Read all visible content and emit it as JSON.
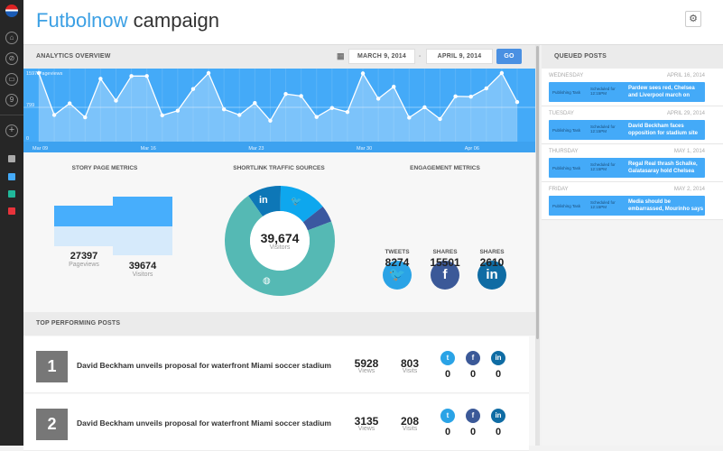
{
  "header": {
    "title_brand": "Futbolnow",
    "title_rest": "campaign"
  },
  "sidebar": {
    "icons": [
      "pepsi-logo",
      "home-icon",
      "compass-icon",
      "briefcase-icon",
      "badge-icon",
      "plus-icon"
    ],
    "badge": "9",
    "colors": [
      "#aaaaaa",
      "#44aaf8",
      "#20b89a",
      "#e8333b"
    ]
  },
  "analytics": {
    "title": "ANALYTICS OVERVIEW",
    "start_date": "MARCH 9, 2014",
    "separator": "-",
    "end_date": "APRIL 9, 2014",
    "go": "GO"
  },
  "chart_data": {
    "type": "area",
    "ylabel": "1597 Pageviews",
    "ylim": [
      0,
      1597
    ],
    "yticks": [
      "0",
      "799"
    ],
    "xticks": [
      "Mar 09",
      "Mar 16",
      "Mar 23",
      "Mar 30",
      "Apr 06"
    ],
    "xtick_index": [
      0,
      7,
      14,
      21,
      28
    ],
    "values": [
      1597,
      620,
      892,
      566,
      1465,
      954,
      1527,
      1527,
      612,
      721,
      1225,
      1597,
      752,
      620,
      899,
      488,
      1109,
      1062,
      574,
      783,
      690,
      1589,
      1000,
      1279,
      558,
      799,
      527,
      1054,
      1047,
      1240,
      1597,
      922
    ]
  },
  "story": {
    "title": "STORY PAGE METRICS",
    "pageviews": "27397",
    "pageviews_label": "Pageviews",
    "visitors": "39674",
    "visitors_label": "Visitors"
  },
  "traffic": {
    "title": "SHORTLINK TRAFFIC SOURCES",
    "total": "39,674",
    "total_label": "Visitors",
    "slices": [
      {
        "source": "linkedin",
        "pct": 10,
        "color": "#0d77b7"
      },
      {
        "source": "twitter",
        "pct": 14,
        "color": "#0ea7ee"
      },
      {
        "source": "facebook",
        "pct": 5,
        "color": "#3b58a0"
      },
      {
        "source": "web",
        "pct": 71,
        "color": "#55b9b4"
      }
    ]
  },
  "engagement": {
    "title": "ENGAGEMENT METRICS",
    "items": [
      {
        "label": "TWEETS",
        "value": "8274",
        "icon": "twitter",
        "color": "#2aa3e6"
      },
      {
        "label": "SHARES",
        "value": "15501",
        "icon": "facebook",
        "color": "#3b5998"
      },
      {
        "label": "SHARES",
        "value": "2610",
        "icon": "linkedin",
        "color": "#0f6ca4"
      }
    ]
  },
  "top": {
    "title": "TOP PERFORMING POSTS",
    "views_label": "Views",
    "visits_label": "Visits",
    "posts": [
      {
        "rank": "1",
        "title": "David Beckham unveils proposal for waterfront Miami soccer stadium",
        "views": "5928",
        "visits": "803",
        "twitter": "0",
        "facebook": "0",
        "linkedin": "0"
      },
      {
        "rank": "2",
        "title": "David Beckham unveils proposal for waterfront Miami soccer stadium",
        "views": "3135",
        "visits": "208",
        "twitter": "0",
        "facebook": "0",
        "linkedin": "0"
      }
    ]
  },
  "queue": {
    "title": "QUEUED POSTS",
    "task": "Publishing Task",
    "scheduled": "Scheduled for 12:15PM",
    "items": [
      {
        "day": "WEDNESDAY",
        "date": "APRIL 16, 2014",
        "headline": "Pardew sees red, Chelsea and Liverpool march on"
      },
      {
        "day": "TUESDAY",
        "date": "APRIL 29, 2014",
        "headline": "David Beckham faces opposition for stadium site"
      },
      {
        "day": "THURSDAY",
        "date": "MAY 1, 2014",
        "headline": "Regal Real thrash Schalke, Galatasaray hold Chelsea"
      },
      {
        "day": "FRIDAY",
        "date": "MAY 2, 2014",
        "headline": "Media should be embarrassed, Mourinho says"
      }
    ]
  }
}
